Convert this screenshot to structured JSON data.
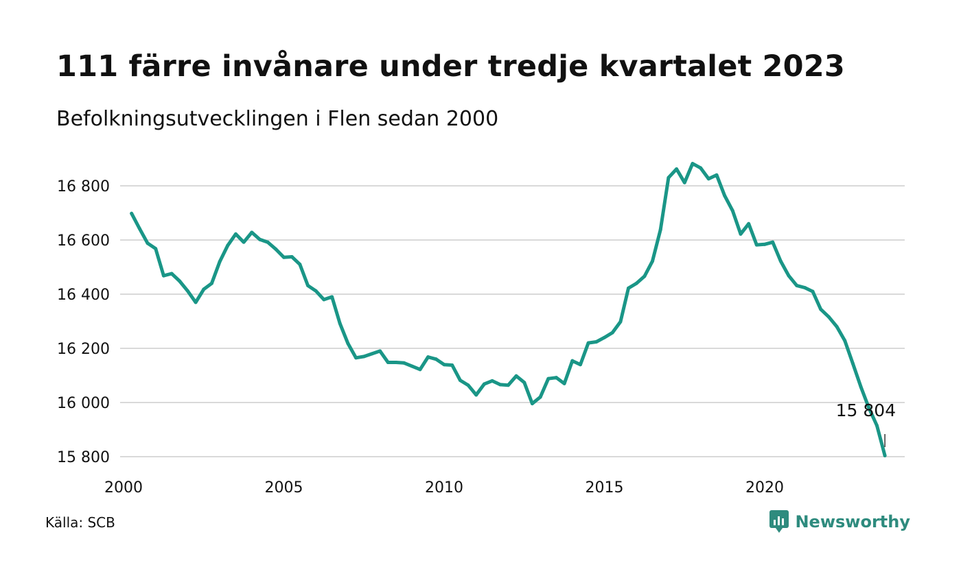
{
  "title": "111 färre invånare under tredje kvartalet 2023",
  "subtitle": "Befolkningsutvecklingen i Flen sedan 2000",
  "source": "Källa: SCB",
  "brand": {
    "name": "Newsworthy",
    "icon": "newsworthy-logo-icon",
    "color": "#2e8b7e"
  },
  "chart_data": {
    "type": "line",
    "color": "#1a9687",
    "grid": true,
    "ylim": [
      15800,
      16900
    ],
    "xlim": [
      2000,
      2024.2
    ],
    "yticks": [
      15800,
      16000,
      16200,
      16400,
      16600,
      16800
    ],
    "ytick_labels": [
      "15 800",
      "16 000",
      "16 200",
      "16 400",
      "16 600",
      "16 800"
    ],
    "xticks": [
      2000,
      2005,
      2010,
      2015,
      2020
    ],
    "xtick_labels": [
      "2000",
      "2005",
      "2010",
      "2015",
      "2020"
    ],
    "end_label": "15 804",
    "x": [
      2000.25,
      2000.5,
      2000.75,
      2001.0,
      2001.25,
      2001.5,
      2001.75,
      2002.0,
      2002.25,
      2002.5,
      2002.75,
      2003.0,
      2003.25,
      2003.5,
      2003.75,
      2004.0,
      2004.25,
      2004.5,
      2004.75,
      2005.0,
      2005.25,
      2005.5,
      2005.75,
      2006.0,
      2006.25,
      2006.5,
      2006.75,
      2007.0,
      2007.25,
      2007.5,
      2007.75,
      2008.0,
      2008.25,
      2008.5,
      2008.75,
      2009.0,
      2009.25,
      2009.5,
      2009.75,
      2010.0,
      2010.25,
      2010.5,
      2010.75,
      2011.0,
      2011.25,
      2011.5,
      2011.75,
      2012.0,
      2012.25,
      2012.5,
      2012.75,
      2013.0,
      2013.25,
      2013.5,
      2013.75,
      2014.0,
      2014.25,
      2014.5,
      2014.75,
      2015.0,
      2015.25,
      2015.5,
      2015.75,
      2016.0,
      2016.25,
      2016.5,
      2016.75,
      2017.0,
      2017.25,
      2017.5,
      2017.75,
      2018.0,
      2018.25,
      2018.5,
      2018.75,
      2019.0,
      2019.25,
      2019.5,
      2019.75,
      2020.0,
      2020.25,
      2020.5,
      2020.75,
      2021.0,
      2021.25,
      2021.5,
      2021.75,
      2022.0,
      2022.25,
      2022.5,
      2022.75,
      2023.0,
      2023.25,
      2023.5,
      2023.75
    ],
    "y": [
      16698,
      16642,
      16588,
      16568,
      16468,
      16476,
      16448,
      16412,
      16370,
      16418,
      16440,
      16520,
      16580,
      16622,
      16592,
      16628,
      16602,
      16592,
      16566,
      16536,
      16538,
      16510,
      16432,
      16412,
      16380,
      16390,
      16292,
      16218,
      16165,
      16170,
      16180,
      16190,
      16148,
      16148,
      16146,
      16134,
      16122,
      16168,
      16160,
      16140,
      16138,
      16082,
      16064,
      16028,
      16068,
      16080,
      16066,
      16064,
      16098,
      16074,
      15996,
      16020,
      16088,
      16092,
      16070,
      16154,
      16140,
      16220,
      16224,
      16240,
      16258,
      16298,
      16422,
      16440,
      16466,
      16522,
      16638,
      16830,
      16862,
      16812,
      16882,
      16866,
      16826,
      16840,
      16764,
      16708,
      16622,
      16660,
      16582,
      16584,
      16592,
      16522,
      16468,
      16432,
      16424,
      16410,
      16344,
      16316,
      16280,
      16228,
      16144,
      16058,
      15980,
      15915,
      15804
    ]
  }
}
